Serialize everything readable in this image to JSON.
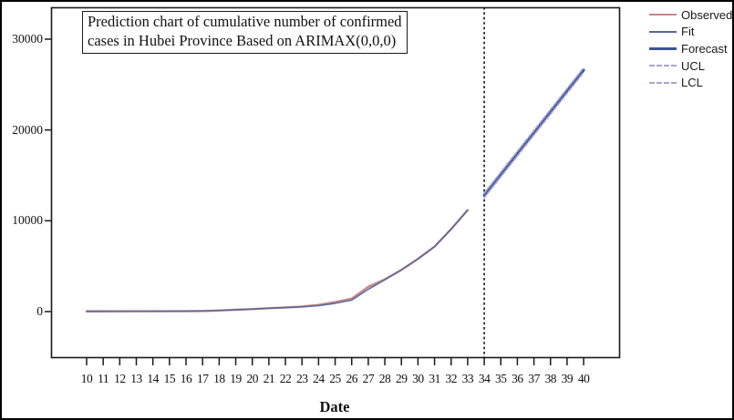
{
  "figure": {
    "background": "#ffffff",
    "outer_border_color": "#000000",
    "plot_border_color": "#1a1a1a"
  },
  "colors": {
    "observed": "#c4858a",
    "fit": "#56699b",
    "forecast": "#3a5693",
    "limits": "#aba3cd",
    "boundary_line": "#111111",
    "axis": "#1a1a1a"
  },
  "legend": {
    "items": [
      {
        "label": "Observed",
        "style": "observed"
      },
      {
        "label": "Fit",
        "style": "fit"
      },
      {
        "label": "Forecast",
        "style": "forecast"
      },
      {
        "label": "UCL",
        "style": "dashed"
      },
      {
        "label": "LCL",
        "style": "dashed"
      }
    ]
  },
  "chart_data": {
    "type": "line",
    "title": "Prediction chart of cumulative number of confirmed cases in Hubei Province Based on ARIMAX(0,0,0)",
    "title_lines": [
      "Prediction chart of cumulative number of confirmed",
      "cases in Hubei Province Based on ARIMAX(0,0,0)"
    ],
    "xlabel": "Date",
    "ylabel": "",
    "x_ticks": [
      10,
      11,
      12,
      13,
      14,
      15,
      16,
      17,
      18,
      19,
      20,
      21,
      22,
      23,
      24,
      25,
      26,
      27,
      28,
      29,
      30,
      31,
      32,
      33,
      34,
      35,
      36,
      37,
      38,
      39,
      40
    ],
    "y_ticks": [
      0,
      10000,
      20000,
      30000
    ],
    "xlim": [
      7.8,
      42.2
    ],
    "ylim": [
      -5100,
      33500
    ],
    "grid": false,
    "legend_position": "outside-top-right",
    "forecast_boundary_x": 34,
    "series": [
      {
        "name": "Observed",
        "role": "observed",
        "x_start": 10,
        "values": [
          41,
          41,
          41,
          45,
          45,
          45,
          45,
          62,
          121,
          198,
          270,
          375,
          444,
          549,
          729,
          1052,
          1423,
          2714,
          3554,
          4586,
          5806,
          7153,
          9074,
          11177
        ]
      },
      {
        "name": "Fit",
        "role": "fit",
        "x_start": 10,
        "values": [
          0,
          5,
          10,
          20,
          30,
          40,
          55,
          85,
          130,
          205,
          280,
          380,
          450,
          520,
          650,
          900,
          1250,
          2450,
          3500,
          4600,
          5800,
          7160,
          9080,
          11180
        ]
      },
      {
        "name": "Forecast",
        "role": "forecast",
        "x_start": 34,
        "values": [
          12800,
          15100,
          17400,
          19700,
          22000,
          24300,
          26600
        ]
      },
      {
        "name": "UCL",
        "role": "ucl",
        "x_start": 34,
        "values": [
          13050,
          15350,
          17650,
          19950,
          22250,
          24550,
          26850
        ]
      },
      {
        "name": "LCL",
        "role": "lcl",
        "x_start": 34,
        "values": [
          12550,
          14850,
          17150,
          19450,
          21750,
          24050,
          26350
        ]
      }
    ]
  }
}
